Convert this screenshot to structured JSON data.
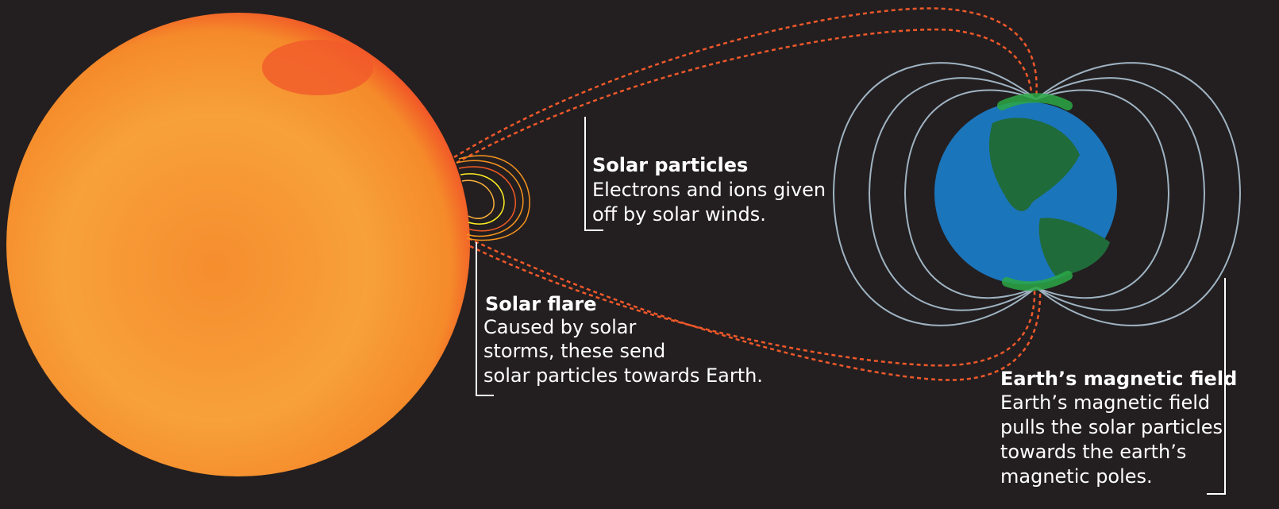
{
  "labels": [
    {
      "title": "Solar particles",
      "lines": [
        "Electrons and ions given",
        "off by solar winds."
      ]
    },
    {
      "title": "Solar flare",
      "lines": [
        "Caused by solar",
        "storms, these send",
        "solar particles towards Earth."
      ]
    },
    {
      "title": "Earth’s magnetic field",
      "lines": [
        "Earth’s magnetic field",
        "pulls the solar particles",
        "towards the earth’s",
        "magnetic poles."
      ]
    }
  ]
}
